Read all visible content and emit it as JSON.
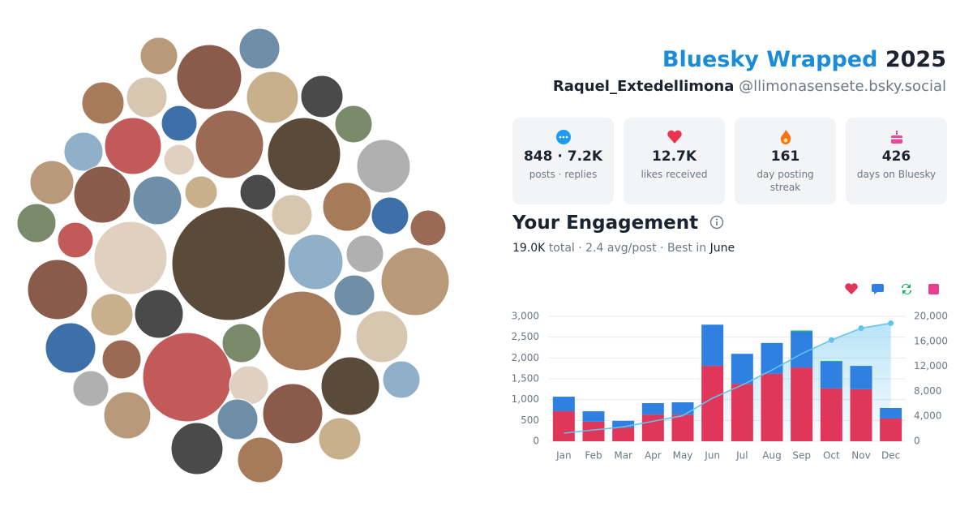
{
  "header": {
    "title": "Bluesky Wrapped",
    "year": "2025",
    "display_name": "Raquel_Extedellimona",
    "handle": "@llimonasensete.bsky.social"
  },
  "stats": [
    {
      "value": "848 · 7.2K",
      "label": "posts · replies"
    },
    {
      "value": "12.7K",
      "label": "likes received"
    },
    {
      "value": "161",
      "label": "day posting streak"
    },
    {
      "value": "426",
      "label": "days on Bluesky"
    }
  ],
  "engagement": {
    "title": "Your Engagement",
    "summary": [
      "19.0K",
      "total · 2.4 avg/post · Best in",
      "June"
    ]
  },
  "chart_data": {
    "type": "bar",
    "stacked": true,
    "categories": [
      "Jan",
      "Feb",
      "Mar",
      "Apr",
      "May",
      "Jun",
      "Jul",
      "Aug",
      "Sep",
      "Oct",
      "Nov",
      "Dec"
    ],
    "series": [
      {
        "color": "#e0365a",
        "values": [
          720,
          470,
          330,
          640,
          640,
          1810,
          1380,
          1620,
          1770,
          1270,
          1250,
          545
        ]
      },
      {
        "color": "#2f80e0",
        "values": [
          350,
          250,
          160,
          275,
          295,
          990,
          720,
          740,
          860,
          640,
          560,
          255
        ]
      },
      {
        "color": "#21b36b",
        "values": [
          0,
          0,
          0,
          0,
          0,
          0,
          0,
          0,
          30,
          20,
          0,
          0
        ]
      },
      {
        "color": "#e8408f",
        "values": [
          0,
          0,
          0,
          0,
          0,
          0,
          0,
          0,
          0,
          0,
          0,
          0
        ]
      },
      {
        "type": "line",
        "axis": "y2",
        "color": "#63c3ee",
        "values": [
          1300,
          1800,
          2300,
          3200,
          4100,
          6900,
          9000,
          11400,
          14000,
          16200,
          18100,
          18900
        ]
      }
    ],
    "ylim": [
      0,
      3000
    ],
    "yticks": [
      0,
      500,
      {
        "value": 1000,
        "label": "1,000"
      },
      {
        "value": 1500,
        "label": "1,500"
      },
      {
        "value": 2000,
        "label": "2,000"
      },
      {
        "value": 2500,
        "label": "2,500"
      },
      {
        "value": 3000,
        "label": "3,000"
      }
    ],
    "y2lim": [
      0,
      20000
    ],
    "y2ticks": [
      0,
      {
        "value": 4000,
        "label": "4,000"
      },
      {
        "value": 8000,
        "label": "8,000"
      },
      {
        "value": 12000,
        "label": "12,000"
      },
      {
        "value": 16000,
        "label": "16,000"
      },
      {
        "value": 20000,
        "label": "20,000"
      }
    ],
    "grid": true
  }
}
